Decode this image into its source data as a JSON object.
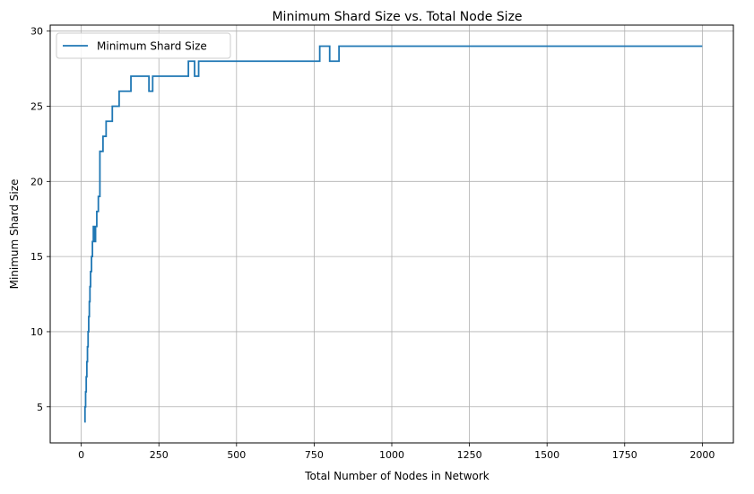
{
  "chart_data": {
    "type": "line",
    "title": "Minimum Shard Size vs. Total Node Size",
    "xlabel": "Total Number of Nodes in Network",
    "ylabel": "Minimum Shard Size",
    "xlim": [
      -100,
      2100
    ],
    "ylim": [
      2.6,
      30.4
    ],
    "xticks": [
      0,
      250,
      500,
      750,
      1000,
      1250,
      1500,
      1750,
      2000
    ],
    "xtick_labels": [
      "0",
      "250",
      "500",
      "750",
      "1000",
      "1250",
      "1500",
      "1750",
      "2000"
    ],
    "yticks": [
      5,
      10,
      15,
      20,
      25,
      30
    ],
    "ytick_labels": [
      "5",
      "10",
      "15",
      "20",
      "25",
      "30"
    ],
    "grid": true,
    "legend_position": "top-left",
    "series": [
      {
        "name": "Minimum Shard Size",
        "color": "#1f77b4",
        "x": [
          10,
          12,
          12,
          14,
          14,
          16,
          16,
          18,
          18,
          20,
          20,
          22,
          22,
          24,
          24,
          26,
          26,
          28,
          28,
          30,
          30,
          33,
          33,
          36,
          36,
          39,
          39,
          42,
          42,
          46,
          46,
          50,
          50,
          55,
          55,
          60,
          60,
          70,
          70,
          80,
          80,
          100,
          100,
          122,
          122,
          160,
          160,
          218,
          218,
          230,
          230,
          345,
          345,
          365,
          365,
          378,
          378,
          768,
          768,
          800,
          800,
          830,
          830,
          2000
        ],
        "y": [
          4,
          4,
          5,
          5,
          6,
          6,
          7,
          7,
          8,
          8,
          9,
          9,
          10,
          10,
          11,
          11,
          12,
          12,
          13,
          13,
          14,
          14,
          15,
          15,
          16,
          16,
          17,
          17,
          16,
          16,
          17,
          17,
          18,
          18,
          19,
          19,
          22,
          22,
          23,
          23,
          24,
          24,
          25,
          25,
          26,
          26,
          27,
          27,
          26,
          26,
          27,
          27,
          28,
          28,
          27,
          27,
          28,
          28,
          29,
          29,
          28,
          28,
          29,
          29
        ]
      }
    ]
  }
}
